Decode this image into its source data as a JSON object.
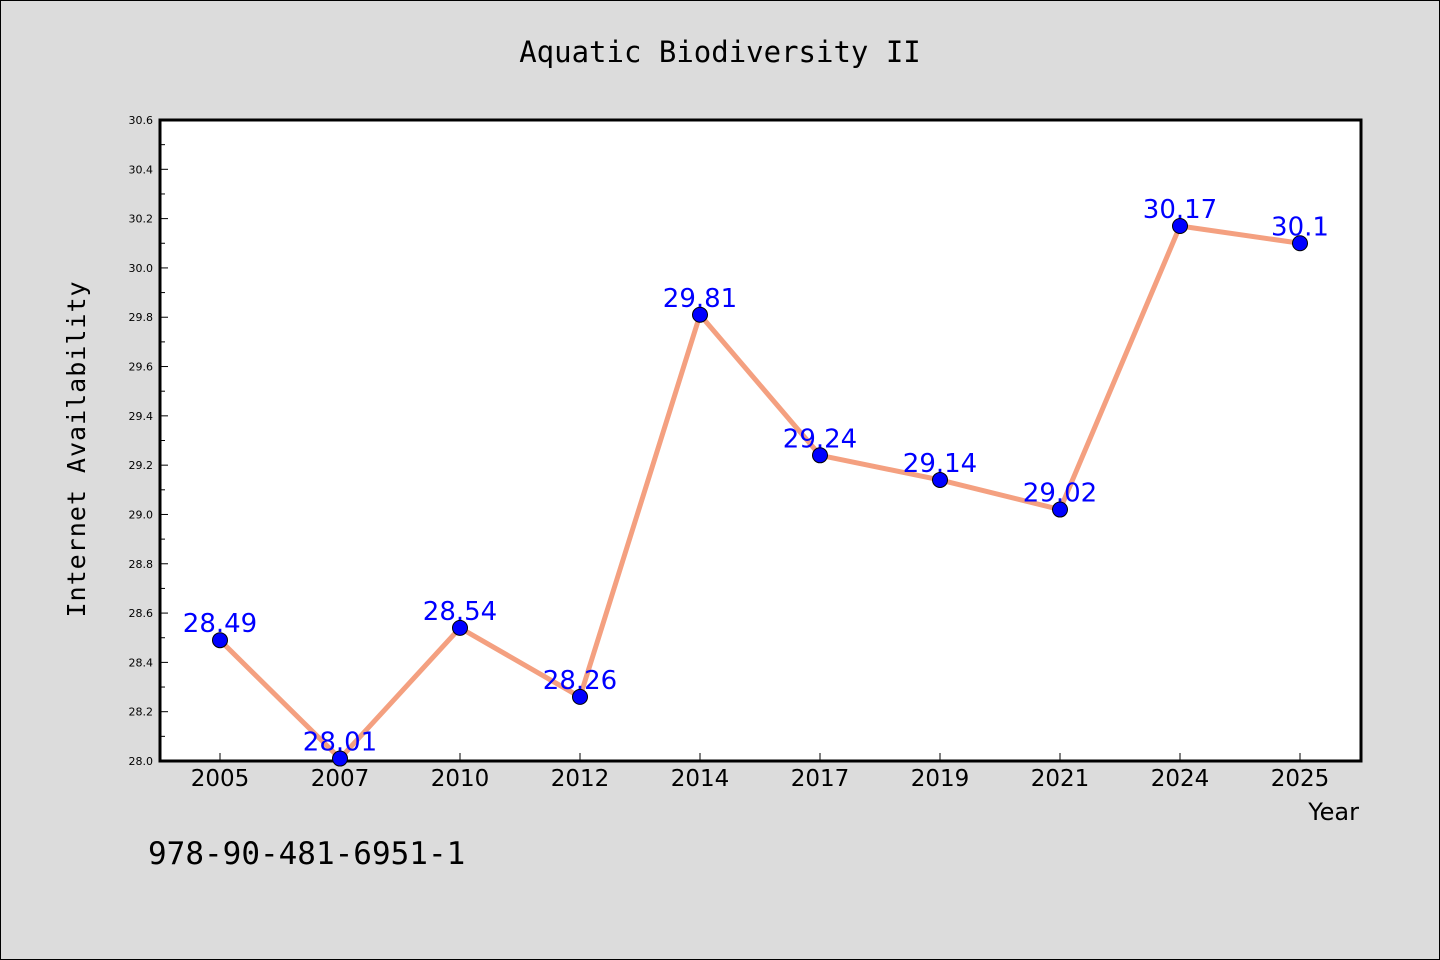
{
  "chart_data": {
    "type": "line",
    "title": "Aquatic Biodiversity II",
    "xlabel": "Year",
    "ylabel": "Internet Availability",
    "categories": [
      "2005",
      "2007",
      "2010",
      "2012",
      "2014",
      "2017",
      "2019",
      "2021",
      "2024",
      "2025"
    ],
    "series": [
      {
        "values": [
          28.49,
          28.01,
          28.54,
          28.26,
          29.81,
          29.24,
          29.14,
          29.02,
          30.17,
          30.1
        ],
        "data_labels": [
          "28.49",
          "28.01",
          "28.54",
          "28.26",
          "29.81",
          "29.24",
          "29.14",
          "29.02",
          "30.17",
          "30.1"
        ],
        "line_color": "#f4a080",
        "marker_color": "#0000ff",
        "label_color": "#0000ff"
      }
    ],
    "ylim": [
      28.0,
      30.6
    ],
    "yticks": [
      "28.0",
      "28.2",
      "28.4",
      "28.6",
      "28.8",
      "29.0",
      "29.2",
      "29.4",
      "29.6",
      "29.8",
      "30.0",
      "30.2",
      "30.4",
      "30.6"
    ],
    "grid": false,
    "legend": "none"
  },
  "footer": {
    "isbn": "978-90-481-6951-1"
  },
  "colors": {
    "background": "#dcdcdc",
    "plot_background": "#ffffff"
  }
}
